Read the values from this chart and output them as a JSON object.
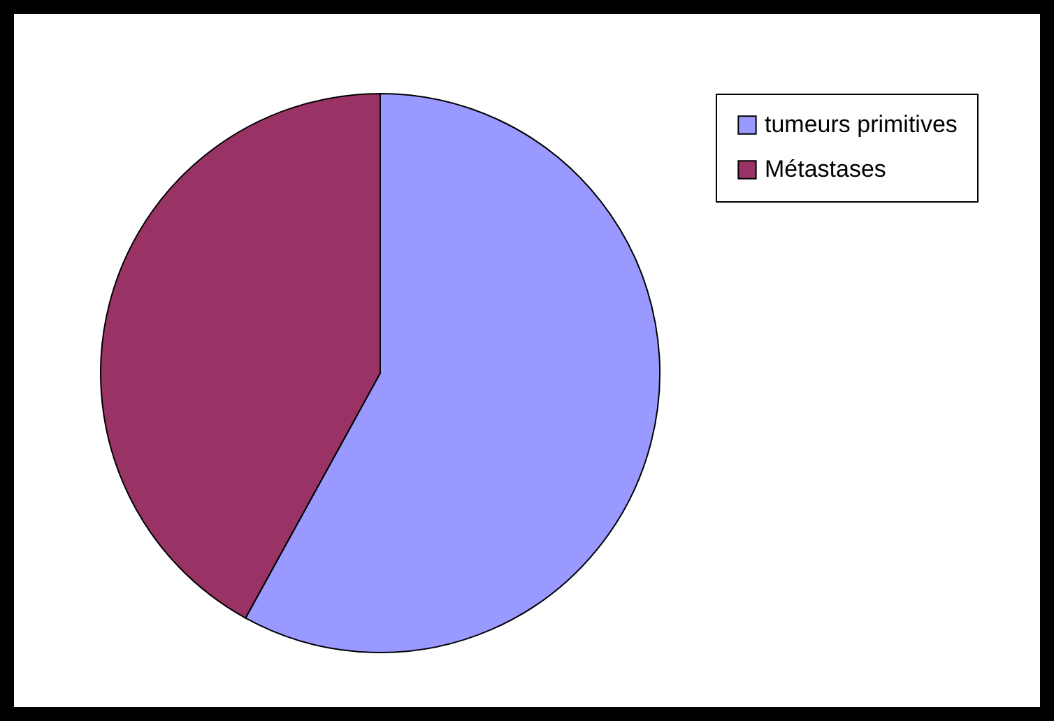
{
  "chart_data": {
    "type": "pie",
    "categories": [
      "tumeurs primitives",
      "Métastases"
    ],
    "values": [
      58,
      42
    ],
    "colors": [
      "#9999ff",
      "#993366"
    ],
    "legend": "right"
  }
}
